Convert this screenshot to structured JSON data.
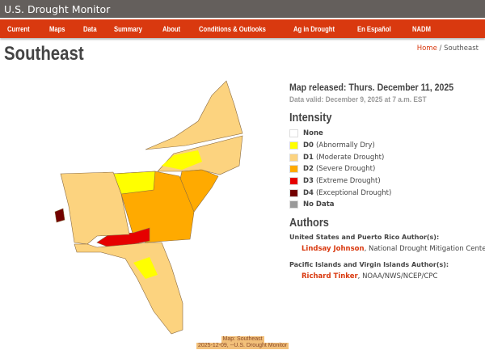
{
  "header": {
    "title": "U.S. Drought Monitor"
  },
  "nav": [
    "Current",
    "Maps",
    "Data",
    "Summary",
    "About",
    "Conditions & Outlooks",
    "Ag in Drought",
    "En Español",
    "NADM"
  ],
  "page": {
    "title": "Southeast",
    "breadcrumb": {
      "home": "Home",
      "sep": "/",
      "current": "Southeast"
    }
  },
  "map_info": {
    "released": "Map released: Thurs. December 11, 2025",
    "valid": "Data valid: December 9, 2025 at 7 a.m. EST"
  },
  "intensity": {
    "title": "Intensity",
    "items": [
      {
        "code": "",
        "label": "None",
        "color": "#ffffff"
      },
      {
        "code": "D0",
        "label": "(Abnormally Dry)",
        "color": "#ffff00"
      },
      {
        "code": "D1",
        "label": "(Moderate Drought)",
        "color": "#fcd37f"
      },
      {
        "code": "D2",
        "label": "(Severe Drought)",
        "color": "#ffaa00"
      },
      {
        "code": "D3",
        "label": "(Extreme Drought)",
        "color": "#e60000"
      },
      {
        "code": "D4",
        "label": "(Exceptional Drought)",
        "color": "#730000"
      },
      {
        "code": "",
        "label": "No Data",
        "color": "#999999"
      }
    ]
  },
  "authors": {
    "title": "Authors",
    "us_heading": "United States and Puerto Rico Author(s):",
    "us_name": "Lindsay Johnson",
    "us_org": ", National Drought Mitigation Center",
    "pi_heading": "Pacific Islands and Virgin Islands Author(s):",
    "pi_name": "Richard Tinker",
    "pi_org": ", NOAA/NWS/NCEP/CPC"
  },
  "caption": {
    "line1": "Map: Southeast",
    "line2": "2025-12-09, --U.S. Drought Monitor"
  }
}
